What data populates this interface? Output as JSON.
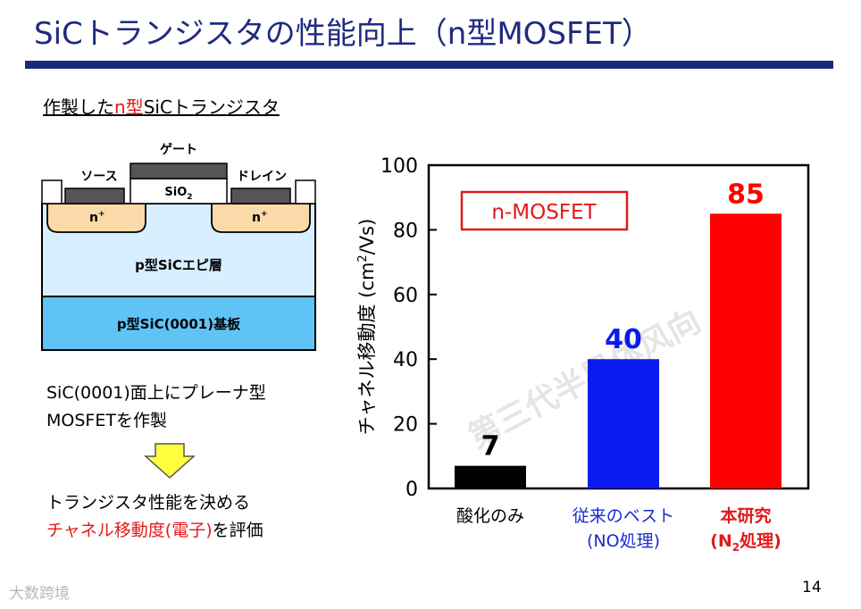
{
  "slide": {
    "title": "SiCトランジスタの性能向上（n型MOSFET）",
    "subtitle_part1": "作製した",
    "subtitle_part2": "n型",
    "subtitle_part3": "SiCトランジスタ",
    "page_number": "14"
  },
  "device": {
    "gate": "ゲート",
    "source": "ソース",
    "drain": "ドレイン",
    "oxide_main": "SiO",
    "oxide_sub": "2",
    "n_plus": "n",
    "n_plus_sup": "+",
    "epi_layer": "p型SiCエピ層",
    "substrate": "p型SiC(0001)基板"
  },
  "text": {
    "desc1_line1": "SiC(0001)面上にプレーナ型",
    "desc1_line2": "MOSFETを作製",
    "desc2_line1": "トランジスタ性能を決める",
    "desc2_red": "チャネル移動度(電子)",
    "desc2_tail": "を評価"
  },
  "watermark": {
    "center": "第三代半导体风向",
    "corner": "大数跨境"
  },
  "colors": {
    "title": "#1f2a80",
    "rule": "#1e2878",
    "accent_red": "#e21a1a",
    "bar_black": "#000000",
    "bar_blue": "#0a1bf0",
    "bar_red": "#ff0000"
  },
  "chart_data": {
    "type": "bar",
    "categories": [
      "酸化のみ",
      "従来のベスト",
      "本研究"
    ],
    "category_sublabels": [
      "",
      "(NO処理)",
      "(N処理)"
    ],
    "values": [
      7,
      40,
      85
    ],
    "value_labels": [
      "7",
      "40",
      "85"
    ],
    "ylabel_text": "チャネル移動度 (cm",
    "ylabel_sup": "2",
    "ylabel_tail": "/Vs)",
    "sublabel_n2_main": "(N",
    "sublabel_n2_sub": "2",
    "sublabel_n2_tail": "処理)",
    "ylim": [
      0,
      100
    ],
    "yticks": [
      0,
      20,
      40,
      60,
      80,
      100
    ],
    "legend_box": "n-MOSFET",
    "grid": false
  }
}
